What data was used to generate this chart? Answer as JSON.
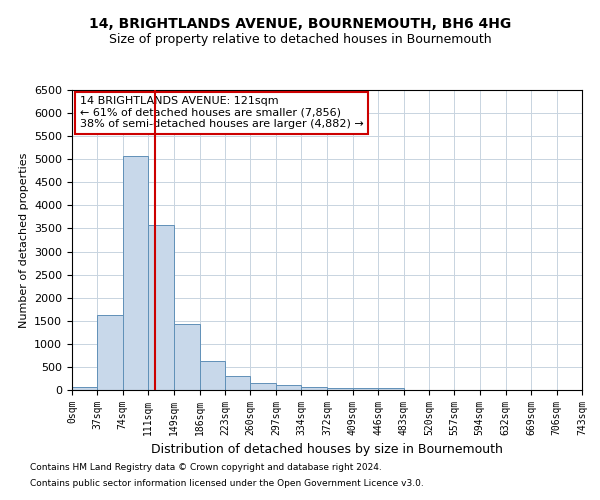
{
  "title1": "14, BRIGHTLANDS AVENUE, BOURNEMOUTH, BH6 4HG",
  "title2": "Size of property relative to detached houses in Bournemouth",
  "xlabel": "Distribution of detached houses by size in Bournemouth",
  "ylabel": "Number of detached properties",
  "footnote1": "Contains HM Land Registry data © Crown copyright and database right 2024.",
  "footnote2": "Contains public sector information licensed under the Open Government Licence v3.0.",
  "bin_edges": [
    0,
    37,
    74,
    111,
    149,
    186,
    223,
    260,
    297,
    334,
    372,
    409,
    446,
    483,
    520,
    557,
    594,
    632,
    669,
    706,
    743
  ],
  "bar_heights": [
    75,
    1625,
    5075,
    3575,
    1425,
    625,
    300,
    150,
    100,
    75,
    50,
    50,
    50,
    5,
    5,
    5,
    5,
    5,
    5,
    5
  ],
  "bar_color": "#c8d8ea",
  "bar_edgecolor": "#6090b8",
  "grid_color": "#c8d4e0",
  "property_size": 121,
  "vline_color": "#cc0000",
  "annotation_title": "14 BRIGHTLANDS AVENUE: 121sqm",
  "annotation_line1": "← 61% of detached houses are smaller (7,856)",
  "annotation_line2": "38% of semi-detached houses are larger (4,882) →",
  "annotation_box_color": "#cc0000",
  "ylim": [
    0,
    6500
  ],
  "xlim": [
    0,
    743
  ],
  "title1_fontsize": 10,
  "title2_fontsize": 9,
  "ylabel_fontsize": 8,
  "xlabel_fontsize": 9,
  "ytick_fontsize": 8,
  "xtick_fontsize": 7,
  "footnote_fontsize": 6.5,
  "ann_fontsize": 8
}
